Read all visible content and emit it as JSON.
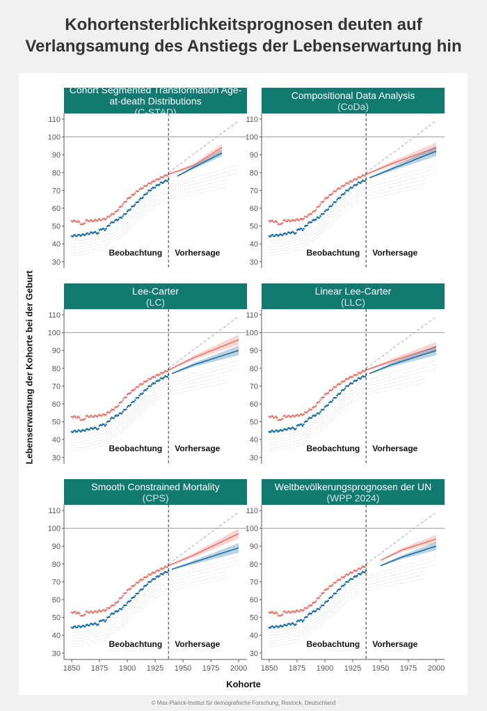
{
  "title_line1": "Kohortensterblichkeitsprognosen deuten auf",
  "title_line2": "Verlangsamung des Anstiegs der Lebenserwartung hin",
  "ylabel": "Lebenserwartung der Kohorte bei der Geburt",
  "xlabel": "Kohorte",
  "footer": "© Max-Planck-Institut für demografische Forschung, Rostock, Deutschland",
  "observation_label": "Beobachtung",
  "forecast_label": "Vorhersage",
  "colors": {
    "female": "#e8766d",
    "male": "#1f6fa0",
    "header": "#137a72",
    "other": "#c9d6cf"
  },
  "chart_data": {
    "type": "line",
    "xlim": [
      1845,
      2005
    ],
    "ylim": [
      27,
      113
    ],
    "xticks": [
      1850,
      1875,
      1900,
      1925,
      1950,
      1975,
      2000
    ],
    "yticks": [
      30,
      40,
      50,
      60,
      70,
      80,
      90,
      100,
      110
    ],
    "reference_line": 100,
    "forecast_start": 1937,
    "observed": {
      "female": [
        [
          1850,
          53
        ],
        [
          1856,
          52.5
        ],
        [
          1860,
          50.5
        ],
        [
          1863,
          53
        ],
        [
          1870,
          53
        ],
        [
          1880,
          54
        ],
        [
          1890,
          58
        ],
        [
          1900,
          65
        ],
        [
          1910,
          70
        ],
        [
          1920,
          74
        ],
        [
          1930,
          77
        ],
        [
          1937,
          79
        ]
      ],
      "male": [
        [
          1850,
          44.5
        ],
        [
          1860,
          45
        ],
        [
          1870,
          46.5
        ],
        [
          1874,
          46
        ],
        [
          1876,
          48.5
        ],
        [
          1880,
          48
        ],
        [
          1885,
          51.5
        ],
        [
          1895,
          55
        ],
        [
          1900,
          58
        ],
        [
          1910,
          64
        ],
        [
          1920,
          70
        ],
        [
          1930,
          74
        ],
        [
          1937,
          76
        ]
      ]
    },
    "panels": [
      {
        "title": "Cohort Segmented Transformation Age-at-death Distributions",
        "abbr": "(C-STAD)",
        "forecast": {
          "start": 1937,
          "female": [
            [
              1937,
              79
            ],
            [
              1960,
              84
            ],
            [
              1985,
              94
            ]
          ],
          "male": [
            [
              1945,
              78
            ],
            [
              1960,
              83
            ],
            [
              1985,
              91
            ]
          ]
        }
      },
      {
        "title": "Compositional Data Analysis",
        "abbr": "(CoDa)",
        "forecast": {
          "start": 1937,
          "female": [
            [
              1937,
              79
            ],
            [
              1960,
              85
            ],
            [
              2000,
              94
            ]
          ],
          "male": [
            [
              1940,
              77
            ],
            [
              1960,
              82
            ],
            [
              2000,
              92
            ]
          ]
        }
      },
      {
        "title": "Lee-Carter",
        "abbr": "(LC)",
        "forecast": {
          "start": 1937,
          "female": [
            [
              1937,
              79
            ],
            [
              1960,
              86
            ],
            [
              2000,
              96
            ]
          ],
          "male": [
            [
              1940,
              77
            ],
            [
              1960,
              82
            ],
            [
              2000,
              90
            ]
          ]
        }
      },
      {
        "title": "Linear Lee-Carter",
        "abbr": "(LLC)",
        "forecast": {
          "start": 1937,
          "female": [
            [
              1937,
              79
            ],
            [
              1960,
              84
            ],
            [
              2000,
              92
            ]
          ],
          "male": [
            [
              1940,
              77
            ],
            [
              1960,
              82
            ],
            [
              2000,
              90
            ]
          ]
        }
      },
      {
        "title": "Smooth Constrained Mortality",
        "abbr": "(CPS)",
        "forecast": {
          "start": 1937,
          "female": [
            [
              1937,
              79
            ],
            [
              1960,
              85
            ],
            [
              2000,
              97
            ]
          ],
          "male": [
            [
              1940,
              77
            ],
            [
              1960,
              81
            ],
            [
              2000,
              89
            ]
          ]
        }
      },
      {
        "title": "Weltbevölkerungsprognosen der UN",
        "abbr": "(WPP 2024)",
        "forecast": {
          "start": 1950,
          "female": [
            [
              1950,
              82
            ],
            [
              1970,
              88
            ],
            [
              2000,
              94
            ]
          ],
          "male": [
            [
              1950,
              79
            ],
            [
              1970,
              84
            ],
            [
              2000,
              90
            ]
          ]
        }
      }
    ]
  }
}
